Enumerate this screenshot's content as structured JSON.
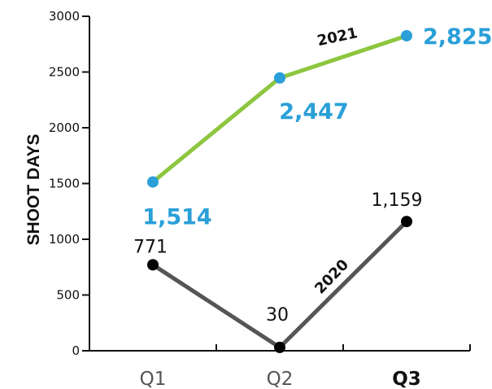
{
  "chart_data": {
    "type": "line",
    "categories": [
      "Q1",
      "Q2",
      "Q3"
    ],
    "highlight_category": "Q3",
    "ylabel": "SHOOT DAYS",
    "ylim": [
      0,
      3000
    ],
    "yticks": [
      "0",
      "500",
      "1000",
      "1500",
      "2000",
      "2500",
      "3000"
    ],
    "grid": false,
    "series": [
      {
        "name": "2021",
        "values": [
          1514,
          2447,
          2825
        ],
        "labels": [
          "1,514",
          "2,447",
          "2,825"
        ],
        "line_color": "#8dc63f",
        "marker_color": "#2a9fd8"
      },
      {
        "name": "2020",
        "values": [
          771,
          30,
          1159
        ],
        "labels": [
          "771",
          "30",
          "1,159"
        ],
        "line_color": "#555555",
        "marker_color": "#000000"
      }
    ]
  }
}
